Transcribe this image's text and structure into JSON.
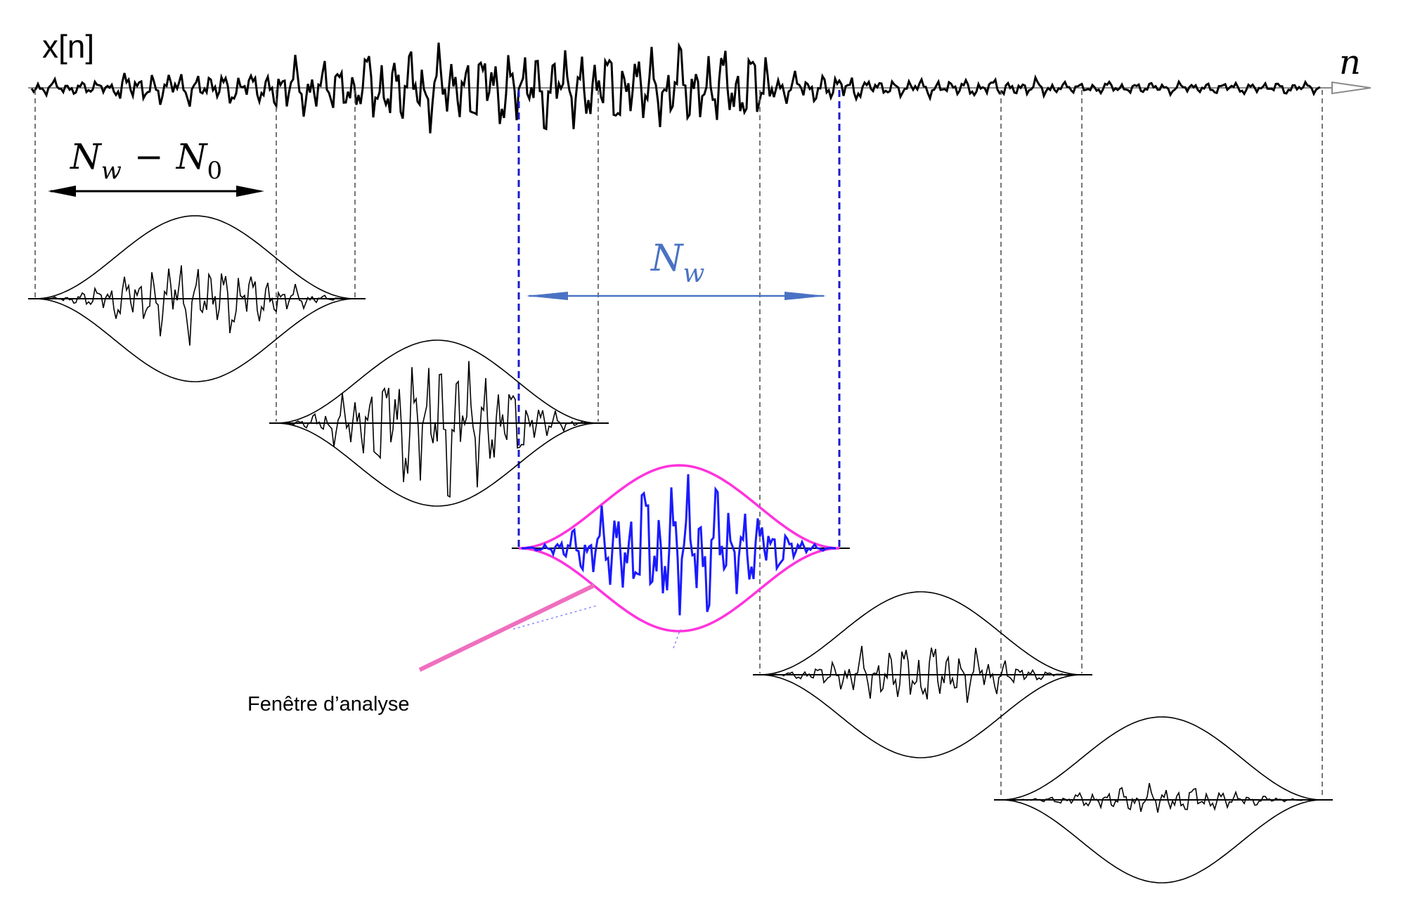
{
  "labels": {
    "signal": "x[n]",
    "time_axis": "n",
    "hop": "N_w − N_0",
    "hop_main": "N",
    "hop_sub1": "w",
    "hop_minus": "−",
    "hop_n0": "N",
    "hop_sub0": "0",
    "window_main": "N",
    "window_sub": "w",
    "annotation": "Fenêtre d’analyse"
  },
  "colors": {
    "signal": "#000000",
    "highlight_signal": "#1a1aff",
    "highlight_envelope": "#ff33dd",
    "highlight_guides": "#1a1acc",
    "window_label": "#4a72c4",
    "annotation_line": "#ef6fbf",
    "axis": "#8a8a8a",
    "guides": "#555555"
  },
  "frames": {
    "count": 5,
    "highlighted_index": 2,
    "amplitudes": [
      0.55,
      1.0,
      1.0,
      0.45,
      0.2
    ]
  }
}
